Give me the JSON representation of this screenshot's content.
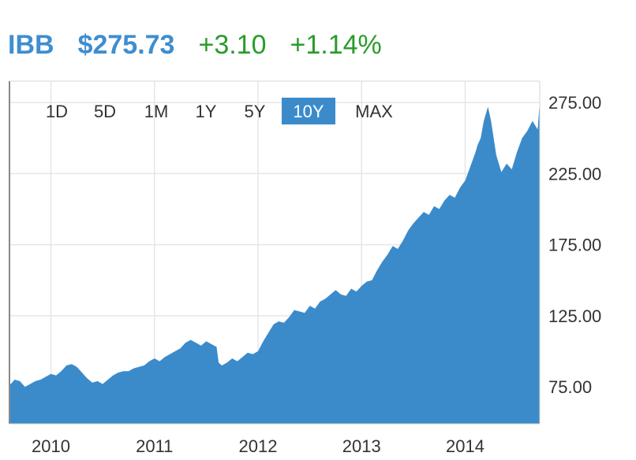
{
  "header": {
    "ticker": "IBB",
    "price": "$275.73",
    "change": "+3.10",
    "change_pct": "+1.14%"
  },
  "range_buttons": [
    {
      "label": "1D",
      "active": false
    },
    {
      "label": "5D",
      "active": false
    },
    {
      "label": "1M",
      "active": false
    },
    {
      "label": "1Y",
      "active": false
    },
    {
      "label": "5Y",
      "active": false
    },
    {
      "label": "10Y",
      "active": true
    },
    {
      "label": "MAX",
      "active": false
    }
  ],
  "colors": {
    "area_fill": "#3b8bcb",
    "active_button": "#3b8bcb",
    "ticker_price": "#3e8ed0",
    "change_positive": "#2a9b2a",
    "grid": "#e6e6e6"
  },
  "chart_data": {
    "type": "area",
    "title": "",
    "xlabel": "",
    "ylabel": "",
    "x_ticks": [
      "2010",
      "2011",
      "2012",
      "2013",
      "2014"
    ],
    "y_ticks": [
      "75.00",
      "125.00",
      "175.00",
      "225.00",
      "275.00"
    ],
    "xlim": [
      2009.6,
      2014.72
    ],
    "ylim": [
      49,
      290
    ],
    "y_axis_side": "right",
    "grid": true,
    "series": [
      {
        "x": [
          2009.6,
          2009.65,
          2009.7,
          2009.75,
          2009.8,
          2009.85,
          2009.9,
          2009.95,
          2010.0,
          2010.05,
          2010.1,
          2010.15,
          2010.2,
          2010.25,
          2010.3,
          2010.35,
          2010.4,
          2010.45,
          2010.5,
          2010.55,
          2010.6,
          2010.65,
          2010.7,
          2010.75,
          2010.8,
          2010.85,
          2010.9,
          2010.95,
          2011.0,
          2011.05,
          2011.1,
          2011.15,
          2011.2,
          2011.25,
          2011.3,
          2011.35,
          2011.4,
          2011.45,
          2011.5,
          2011.55,
          2011.6,
          2011.62,
          2011.65,
          2011.7,
          2011.75,
          2011.8,
          2011.85,
          2011.9,
          2011.95,
          2012.0,
          2012.05,
          2012.1,
          2012.15,
          2012.2,
          2012.25,
          2012.3,
          2012.35,
          2012.4,
          2012.45,
          2012.5,
          2012.55,
          2012.6,
          2012.65,
          2012.7,
          2012.75,
          2012.8,
          2012.85,
          2012.9,
          2012.95,
          2013.0,
          2013.05,
          2013.1,
          2013.15,
          2013.2,
          2013.25,
          2013.3,
          2013.35,
          2013.4,
          2013.45,
          2013.5,
          2013.55,
          2013.6,
          2013.65,
          2013.7,
          2013.75,
          2013.8,
          2013.85,
          2013.9,
          2013.95,
          2014.0,
          2014.05,
          2014.1,
          2014.12,
          2014.15,
          2014.18,
          2014.22,
          2014.25,
          2014.3,
          2014.35,
          2014.4,
          2014.45,
          2014.5,
          2014.55,
          2014.6,
          2014.65,
          2014.7,
          2014.72
        ],
        "y": [
          76,
          80,
          79,
          75,
          77,
          79,
          80,
          82,
          84,
          83,
          86,
          90,
          91,
          89,
          85,
          81,
          78,
          79,
          77,
          80,
          83,
          85,
          86,
          86,
          88,
          89,
          90,
          93,
          95,
          93,
          96,
          98,
          100,
          102,
          106,
          108,
          106,
          104,
          107,
          105,
          103,
          92,
          90,
          92,
          95,
          93,
          96,
          99,
          98,
          100,
          107,
          113,
          119,
          121,
          120,
          124,
          129,
          128,
          127,
          132,
          130,
          135,
          137,
          140,
          143,
          140,
          139,
          144,
          142,
          146,
          149,
          150,
          157,
          163,
          168,
          174,
          172,
          178,
          185,
          190,
          194,
          198,
          196,
          202,
          200,
          206,
          210,
          208,
          215,
          220,
          230,
          240,
          245,
          250,
          262,
          272,
          262,
          238,
          226,
          232,
          228,
          240,
          250,
          255,
          262,
          256,
          276
        ]
      }
    ]
  }
}
